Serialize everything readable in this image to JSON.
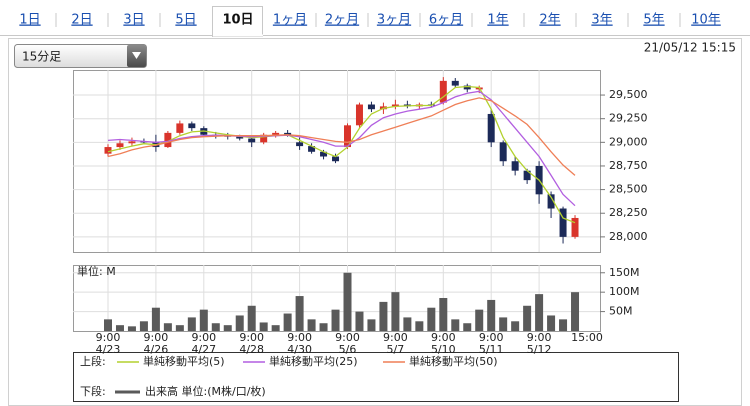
{
  "tabs": {
    "items": [
      "1日",
      "2日",
      "3日",
      "5日",
      "10日",
      "1ヶ月",
      "2ヶ月",
      "3ヶ月",
      "6ヶ月",
      "1年",
      "2年",
      "3年",
      "5年",
      "10年"
    ],
    "selected": 4
  },
  "period_select": "15分足",
  "timestamp": "21/05/12 15:15",
  "chart_data": [
    {
      "type": "candlestick",
      "legend_title": "上段:",
      "categories": [
        {
          "time": "9:00",
          "date": "4/23"
        },
        null,
        null,
        null,
        {
          "time": "9:00",
          "date": "4/26"
        },
        null,
        null,
        null,
        {
          "time": "9:00",
          "date": "4/27"
        },
        null,
        null,
        null,
        {
          "time": "9:00",
          "date": "4/28"
        },
        null,
        null,
        null,
        {
          "time": "9:00",
          "date": "4/30"
        },
        null,
        null,
        null,
        {
          "time": "9:00",
          "date": "5/6"
        },
        null,
        null,
        null,
        {
          "time": "9:00",
          "date": "5/7"
        },
        null,
        null,
        null,
        {
          "time": "9:00",
          "date": "5/10"
        },
        null,
        null,
        null,
        {
          "time": "9:00",
          "date": "5/11"
        },
        null,
        null,
        null,
        {
          "time": "9:00",
          "date": "5/12"
        },
        null,
        null,
        null,
        {
          "time": "15:00"
        }
      ],
      "open": [
        28880,
        28950,
        28990,
        29010,
        29000,
        28950,
        29100,
        29200,
        29150,
        29080,
        29070,
        29060,
        29040,
        29000,
        29080,
        29100,
        29000,
        28960,
        28900,
        28850,
        28950,
        29180,
        29400,
        29350,
        29380,
        29400,
        29380,
        29400,
        29420,
        29650,
        29600,
        29560,
        29300,
        29000,
        28800,
        28700,
        28750,
        28450,
        28300,
        28000,
        null
      ],
      "high": [
        28980,
        29020,
        29050,
        29040,
        29080,
        29120,
        29230,
        29220,
        29170,
        29110,
        29100,
        29080,
        29060,
        29100,
        29120,
        29130,
        29050,
        28990,
        28920,
        28880,
        29200,
        29420,
        29430,
        29420,
        29450,
        29440,
        29420,
        29430,
        29690,
        29680,
        29620,
        29600,
        29350,
        29020,
        28850,
        28720,
        28800,
        28480,
        28320,
        28230,
        null
      ],
      "low": [
        28850,
        28920,
        28960,
        28980,
        28900,
        28940,
        29080,
        29120,
        29060,
        29040,
        29030,
        29020,
        28950,
        28980,
        29050,
        29060,
        28920,
        28880,
        28820,
        28780,
        28930,
        29150,
        29320,
        29300,
        29350,
        29360,
        29350,
        29370,
        29400,
        29580,
        29530,
        29520,
        28950,
        28750,
        28650,
        28560,
        28350,
        28200,
        27930,
        27980,
        null
      ],
      "close": [
        28950,
        28990,
        29010,
        29000,
        28950,
        29100,
        29200,
        29150,
        29080,
        29070,
        29060,
        29040,
        29000,
        29080,
        29100,
        29080,
        28960,
        28900,
        28850,
        28800,
        29180,
        29400,
        29350,
        29380,
        29400,
        29380,
        29400,
        29390,
        29650,
        29600,
        29560,
        29580,
        29000,
        28800,
        28700,
        28600,
        28450,
        28300,
        28000,
        28200,
        null
      ],
      "up_color": "#d9342b",
      "down_color": "#1c2a58",
      "series": [
        {
          "name": "単純移動平均(5)",
          "color": "#b3d12e",
          "values": [
            28900,
            28930,
            28960,
            28985,
            28975,
            29010,
            29070,
            29110,
            29120,
            29100,
            29080,
            29065,
            29050,
            29060,
            29070,
            29080,
            29020,
            28960,
            28900,
            28850,
            28950,
            29150,
            29300,
            29360,
            29380,
            29385,
            29390,
            29390,
            29480,
            29580,
            29590,
            29580,
            29350,
            29050,
            28850,
            28700,
            28600,
            28420,
            28200,
            28150,
            null
          ]
        },
        {
          "name": "単純移動平均(25)",
          "color": "#b25fe0",
          "values": [
            29020,
            29030,
            29020,
            29010,
            29000,
            29010,
            29040,
            29060,
            29070,
            29075,
            29070,
            29065,
            29060,
            29065,
            29070,
            29075,
            29060,
            29030,
            29000,
            28960,
            28960,
            29050,
            29180,
            29260,
            29300,
            29330,
            29350,
            29370,
            29420,
            29480,
            29520,
            29540,
            29450,
            29300,
            29150,
            29000,
            28850,
            28650,
            28450,
            28330,
            null
          ]
        },
        {
          "name": "単純移動平均(50)",
          "color": "#ef7f57",
          "values": [
            28850,
            28880,
            28920,
            28950,
            28970,
            29000,
            29030,
            29050,
            29060,
            29065,
            29070,
            29070,
            29070,
            29070,
            29075,
            29080,
            29070,
            29050,
            29030,
            29010,
            29000,
            29030,
            29080,
            29120,
            29160,
            29200,
            29240,
            29280,
            29340,
            29400,
            29440,
            29470,
            29440,
            29360,
            29280,
            29190,
            29050,
            28900,
            28760,
            28650,
            null
          ]
        }
      ],
      "ylim": [
        27840,
        29765
      ],
      "yticks": [
        {
          "value": 28000,
          "label": "28,000"
        },
        {
          "value": 28250,
          "label": "28,250"
        },
        {
          "value": 28500,
          "label": "28,500"
        },
        {
          "value": 28750,
          "label": "28,750"
        },
        {
          "value": 29000,
          "label": "29,000"
        },
        {
          "value": 29250,
          "label": "29,250"
        },
        {
          "value": 29500,
          "label": "29,500"
        }
      ],
      "grid": true
    },
    {
      "type": "bar",
      "legend_title": "下段:",
      "unit_label": "単位: M",
      "series": [
        {
          "name": "出来高 単位:(M株/口/枚)",
          "color": "#5a5a5a",
          "values": [
            30,
            15,
            12,
            25,
            60,
            20,
            15,
            35,
            55,
            20,
            15,
            40,
            65,
            22,
            15,
            45,
            90,
            30,
            20,
            55,
            150,
            50,
            30,
            75,
            100,
            35,
            25,
            60,
            85,
            30,
            20,
            55,
            80,
            35,
            25,
            65,
            95,
            40,
            30,
            100,
            null
          ]
        }
      ],
      "ylim": [
        0,
        170
      ],
      "yticks": [
        {
          "value": 50,
          "label": "50M"
        },
        {
          "value": 100,
          "label": "100M"
        },
        {
          "value": 150,
          "label": "150M"
        }
      ],
      "grid": true
    }
  ]
}
